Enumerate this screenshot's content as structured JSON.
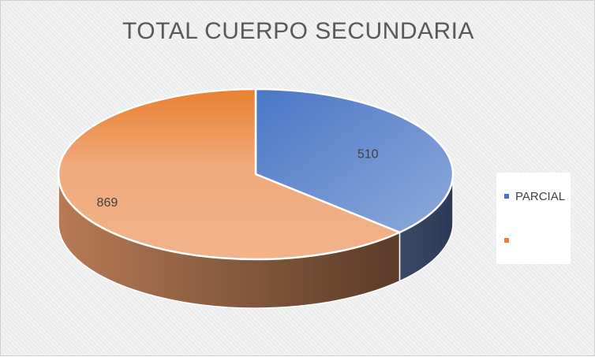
{
  "chart_data": {
    "type": "pie",
    "title": "TOTAL CUERPO SECUNDARIA",
    "slices": [
      {
        "label": "PARCIAL",
        "value": 510,
        "color": "#4472c4"
      },
      {
        "label": "",
        "value": 869,
        "color": "#ed7d31"
      }
    ],
    "legend_position": "right",
    "data_labels": [
      "510",
      "869"
    ],
    "style": "3d"
  }
}
